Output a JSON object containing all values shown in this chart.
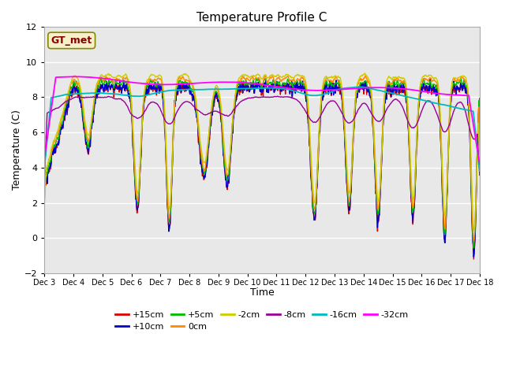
{
  "title": "Temperature Profile C",
  "xlabel": "Time",
  "ylabel": "Temperature (C)",
  "ylim": [
    -2,
    12
  ],
  "yticks": [
    -2,
    0,
    2,
    4,
    6,
    8,
    10,
    12
  ],
  "x_labels": [
    "Dec 3",
    "Dec 4",
    "Dec 5",
    "Dec 6",
    "Dec 7",
    "Dec 8",
    "Dec 9",
    "Dec 10",
    "Dec 11",
    "Dec 12",
    "Dec 13",
    "Dec 14",
    "Dec 15",
    "Dec 16",
    "Dec 17",
    "Dec 18"
  ],
  "n_points": 960,
  "series": {
    "+15cm": {
      "color": "#dd0000",
      "lw": 1.0
    },
    "+10cm": {
      "color": "#0000cc",
      "lw": 1.0
    },
    "+5cm": {
      "color": "#00bb00",
      "lw": 1.0
    },
    "0cm": {
      "color": "#ff8800",
      "lw": 1.0
    },
    "-2cm": {
      "color": "#cccc00",
      "lw": 1.0
    },
    "-8cm": {
      "color": "#990099",
      "lw": 1.0
    },
    "-16cm": {
      "color": "#00bbbb",
      "lw": 1.3
    },
    "-32cm": {
      "color": "#ff00ff",
      "lw": 1.3
    }
  },
  "bg_color": "#ffffff",
  "plot_bg": "#e8e8e8",
  "grid_color": "#ffffff",
  "legend_box_color": "#f5f0c8",
  "legend_box_edge": "#888800",
  "annotation_text": "GT_met",
  "annotation_color": "#880000"
}
